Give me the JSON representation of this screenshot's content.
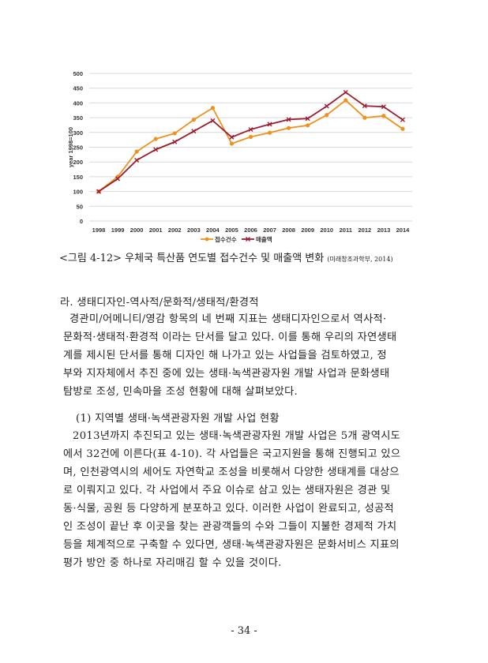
{
  "chart_data": {
    "type": "line",
    "title": "",
    "xlabel": "",
    "ylabel": "year 1998=100",
    "ylim": [
      0,
      500
    ],
    "yticks": [
      0,
      50,
      100,
      150,
      200,
      250,
      300,
      350,
      400,
      450,
      500
    ],
    "grid": true,
    "legend_position": "bottom",
    "categories": [
      "1998",
      "1999",
      "2000",
      "2001",
      "2002",
      "2003",
      "2004",
      "2005",
      "2006",
      "2007",
      "2008",
      "2009",
      "2010",
      "2011",
      "2012",
      "2013",
      "2014"
    ],
    "series": [
      {
        "name": "접수건수",
        "color": "#f0901e",
        "marker": "circle",
        "values": [
          100,
          150,
          235,
          278,
          297,
          343,
          383,
          262,
          285,
          299,
          315,
          324,
          359,
          409,
          350,
          356,
          312
        ]
      },
      {
        "name": "매출액",
        "color": "#9b1c2e",
        "marker": "x",
        "values": [
          100,
          143,
          206,
          242,
          268,
          304,
          340,
          284,
          310,
          328,
          344,
          347,
          389,
          436,
          390,
          387,
          343
        ]
      }
    ]
  },
  "caption": {
    "text": "<그림 4-12> 우체국 특산품 연도별 접수건수 및 매출액 변화",
    "source": "(미래창조과학부, 2014)"
  },
  "section": {
    "heading": "라. 생태디자인-역사적/문화적/생태적/환경적",
    "lines": [
      "경관미/어메니티/영감 항목의 네 번째 지표는 생태디자인으로서 역사적·",
      "문화적·생태적·환경적 이라는 단서를 달고 있다. 이를 통해 우리의 자연생태",
      "계를 제시된 단서를 통해 디자인 해 나가고 있는 사업들을 검토하였고, 정",
      "부와 지자체에서 추진 중에 있는 생태·녹색관광자원 개발 사업과 문화생태",
      "탐방로 조성, 민속마을 조성 현황에 대해 살펴보았다."
    ]
  },
  "subsection": {
    "heading": "(1) 지역별 생태·녹색관광자원 개발 사업 현황",
    "lines": [
      "2013년까지 추진되고 있는 생태·녹색관광자원 개발 사업은 5개 광역시도",
      "에서 32건에 이른다(표 4-10). 각 사업들은 국고지원을 통해 진행되고 있으",
      "며, 인천광역시의 세어도 자연학교 조성을 비롯해서 다양한 생태계를 대상으",
      "로 이뤄지고 있다. 각 사업에서 주요 이슈로 삼고 있는 생태자원은 경관 및",
      "동·식물, 공원 등 다양하게 분포하고 있다. 이러한 사업이 완료되고, 성공적",
      "인 조성이 끝난 후 이곳을 찾는 관광객들의 수와 그들이 지불한 경제적 가치",
      "등을 체계적으로 구축할 수 있다면, 생태·녹색관광자원은 문화서비스 지표의",
      "평가 방안 중 하나로 자리매김 할 수 있을 것이다."
    ]
  },
  "page_number": "- 34 -"
}
